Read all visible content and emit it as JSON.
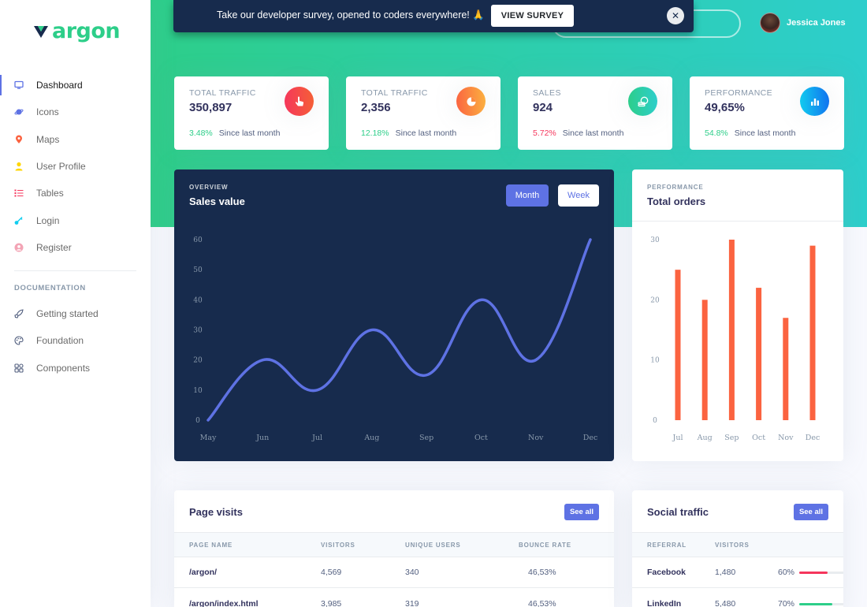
{
  "brand": {
    "name": "argon"
  },
  "banner": {
    "text": "Take our developer survey, opened to coders everywhere! 🙏",
    "button": "VIEW SURVEY",
    "close": "✕"
  },
  "user": {
    "name": "Jessica Jones"
  },
  "sidebar": {
    "items": [
      {
        "label": "Dashboard",
        "icon": "monitor-icon",
        "color": "#5e72e4"
      },
      {
        "label": "Icons",
        "icon": "planet-icon",
        "color": "#5e72e4"
      },
      {
        "label": "Maps",
        "icon": "pin-icon",
        "color": "#fb6340"
      },
      {
        "label": "User Profile",
        "icon": "user-icon",
        "color": "#ffd600"
      },
      {
        "label": "Tables",
        "icon": "bullet-list-icon",
        "color": "#f5365c"
      },
      {
        "label": "Login",
        "icon": "key-icon",
        "color": "#11cdef"
      },
      {
        "label": "Register",
        "icon": "circle-user-icon",
        "color": "#f3a4b5"
      }
    ],
    "doc_heading": "DOCUMENTATION",
    "doc_items": [
      {
        "label": "Getting started",
        "icon": "spaceship-icon"
      },
      {
        "label": "Foundation",
        "icon": "palette-icon"
      },
      {
        "label": "Components",
        "icon": "ui-blocks-icon"
      }
    ]
  },
  "stats": [
    {
      "title": "TOTAL TRAFFIC",
      "value": "350,897",
      "pct": "3.48%",
      "pct_color": "#2dce89",
      "foot": "Since last month",
      "icon": "hand-pointer-icon",
      "grad": "linear-gradient(87deg,#f5365c 0,#f56036 100%)"
    },
    {
      "title": "TOTAL TRAFFIC",
      "value": "2,356",
      "pct": "12.18%",
      "pct_color": "#2dce89",
      "foot": "Since last month",
      "icon": "pie-chart-icon",
      "grad": "linear-gradient(87deg,#fb6340 0,#fbb140 100%)"
    },
    {
      "title": "SALES",
      "value": "924",
      "pct": "5.72%",
      "pct_color": "#f5365c",
      "foot": "Since last month",
      "icon": "money-coins-icon",
      "grad": "linear-gradient(87deg,#2dce89 0,#2dcecc 100%)"
    },
    {
      "title": "PERFORMANCE",
      "value": "49,65%",
      "pct": "54.8%",
      "pct_color": "#2dce89",
      "foot": "Since last month",
      "icon": "bar-chart-icon",
      "grad": "linear-gradient(87deg,#11cdef 0,#1171ef 100%)"
    }
  ],
  "overview": {
    "overline": "OVERVIEW",
    "title": "Sales value",
    "tab_month": "Month",
    "tab_week": "Week"
  },
  "performance": {
    "overline": "PERFORMANCE",
    "title": "Total orders"
  },
  "chart_data": [
    {
      "type": "line",
      "title": "Sales value",
      "categories": [
        "May",
        "Jun",
        "Jul",
        "Aug",
        "Sep",
        "Oct",
        "Nov",
        "Dec"
      ],
      "values": [
        0,
        20,
        10,
        30,
        15,
        40,
        20,
        60
      ],
      "yticks": [
        0,
        10,
        20,
        30,
        40,
        50,
        60
      ],
      "ylim": [
        0,
        60
      ],
      "color": "#5e72e4",
      "grid": false
    },
    {
      "type": "bar",
      "title": "Total orders",
      "categories": [
        "Jul",
        "Aug",
        "Sep",
        "Oct",
        "Nov",
        "Dec"
      ],
      "values": [
        25,
        20,
        30,
        22,
        17,
        29
      ],
      "yticks": [
        0,
        10,
        20,
        30
      ],
      "ylim": [
        0,
        30
      ],
      "color": "#fb6340",
      "grid": false
    }
  ],
  "page_visits": {
    "title": "Page visits",
    "see_all": "See all",
    "headers": [
      "PAGE NAME",
      "VISITORS",
      "UNIQUE USERS",
      "BOUNCE RATE"
    ],
    "rows": [
      [
        "/argon/",
        "4,569",
        "340",
        "46,53%"
      ],
      [
        "/argon/index.html",
        "3,985",
        "319",
        "46,53%"
      ]
    ]
  },
  "social_traffic": {
    "title": "Social traffic",
    "see_all": "See all",
    "headers": [
      "REFERRAL",
      "VISITORS"
    ],
    "rows": [
      {
        "name": "Facebook",
        "visitors": "1,480",
        "pct": "60%",
        "value": 0.6,
        "color": "#f5365c"
      },
      {
        "name": "LinkedIn",
        "visitors": "5,480",
        "pct": "70%",
        "value": 0.7,
        "color": "#2dce89"
      }
    ]
  }
}
